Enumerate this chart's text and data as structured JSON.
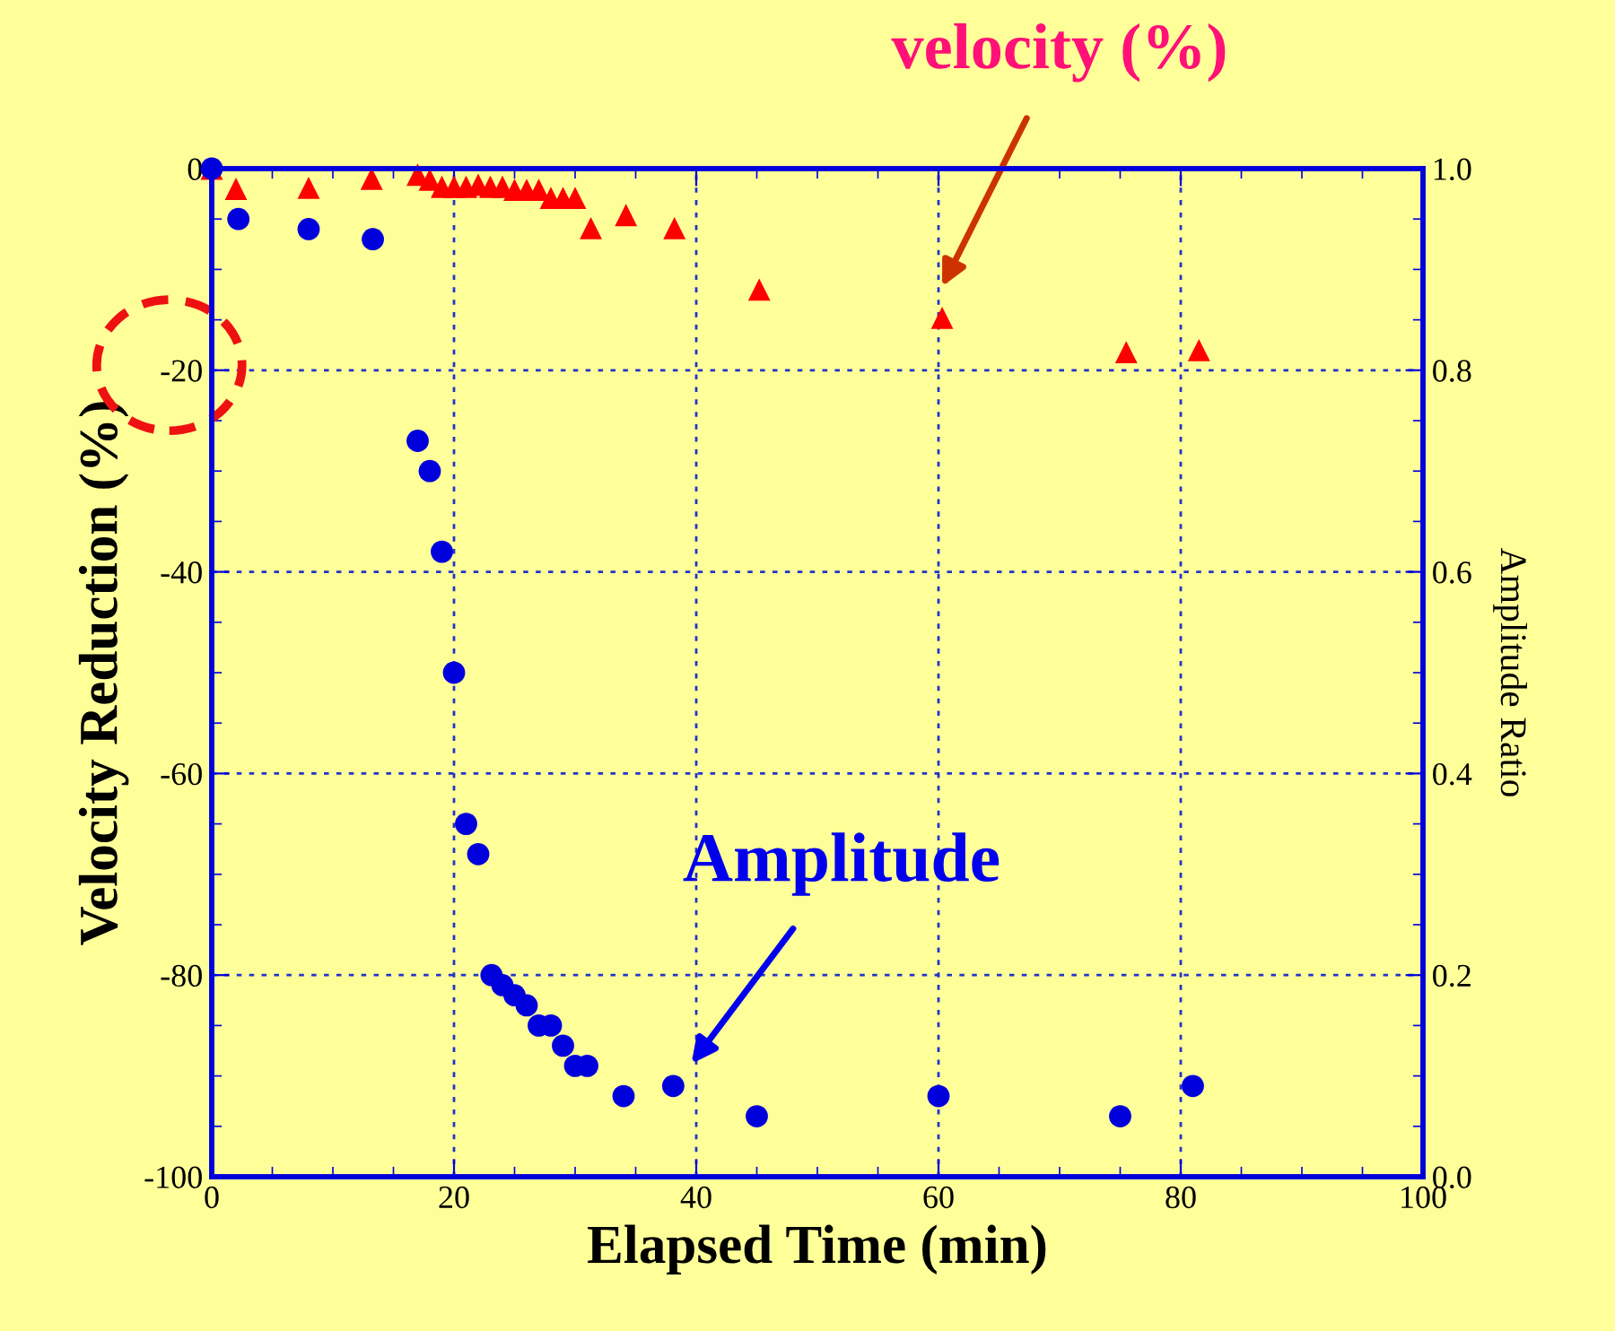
{
  "chart_data": {
    "type": "scatter",
    "xlabel": "Elapsed Time (min)",
    "ylabel": "Velocity Reduction (%)",
    "y2label": "Amplitude Ratio",
    "xlim": [
      0,
      100
    ],
    "xticks": [
      0,
      20,
      40,
      60,
      80,
      100
    ],
    "ylim": [
      -100,
      0
    ],
    "yticks": [
      -100,
      -80,
      -60,
      -40,
      -20,
      0
    ],
    "y2lim": [
      0,
      1
    ],
    "y2ticks": [
      {
        "value": 0,
        "label": "0.0"
      },
      {
        "value": 0.2,
        "label": "0.2"
      },
      {
        "value": 0.4,
        "label": "0.4"
      },
      {
        "value": 0.6,
        "label": "0.6"
      },
      {
        "value": 0.8,
        "label": "0.8"
      },
      {
        "value": 1,
        "label": "1.0"
      }
    ],
    "grid": true,
    "series": [
      {
        "color": "#ff0000",
        "marker": "triangle",
        "x": [
          0,
          2,
          8,
          13.2,
          17,
          18,
          19,
          20,
          21,
          22,
          23,
          24,
          25,
          26,
          27,
          28,
          29,
          30,
          31.3,
          34.2,
          38.2,
          45.2,
          60.3,
          75.5,
          81.5
        ],
        "values": [
          0,
          -2,
          -1.9,
          -1,
          -0.6,
          -1.1,
          -1.8,
          -1.8,
          -1.8,
          -1.6,
          -1.8,
          -1.8,
          -2.1,
          -2.1,
          -2.1,
          -2.9,
          -2.9,
          -2.9,
          -5.9,
          -4.6,
          -5.9,
          -12,
          -14.8,
          -18.2,
          -18
        ]
      },
      {
        "color": "#0000dd",
        "marker": "circle",
        "axis": "y2",
        "x": [
          0,
          2.2,
          8,
          13.3,
          17,
          18,
          19,
          20,
          21,
          22,
          23.1,
          24,
          25,
          26,
          27,
          28,
          29,
          30,
          31,
          34,
          38.1,
          45,
          60,
          75,
          81
        ],
        "values": [
          1,
          0.95,
          0.94,
          0.93,
          0.73,
          0.7,
          0.62,
          0.5,
          0.35,
          0.32,
          0.2,
          0.19,
          0.18,
          0.17,
          0.15,
          0.15,
          0.13,
          0.11,
          0.11,
          0.08,
          0.09,
          0.06,
          0.08,
          0.06,
          0.09
        ]
      }
    ],
    "annotations": [
      "velocity (%)",
      "Amplitude"
    ]
  }
}
